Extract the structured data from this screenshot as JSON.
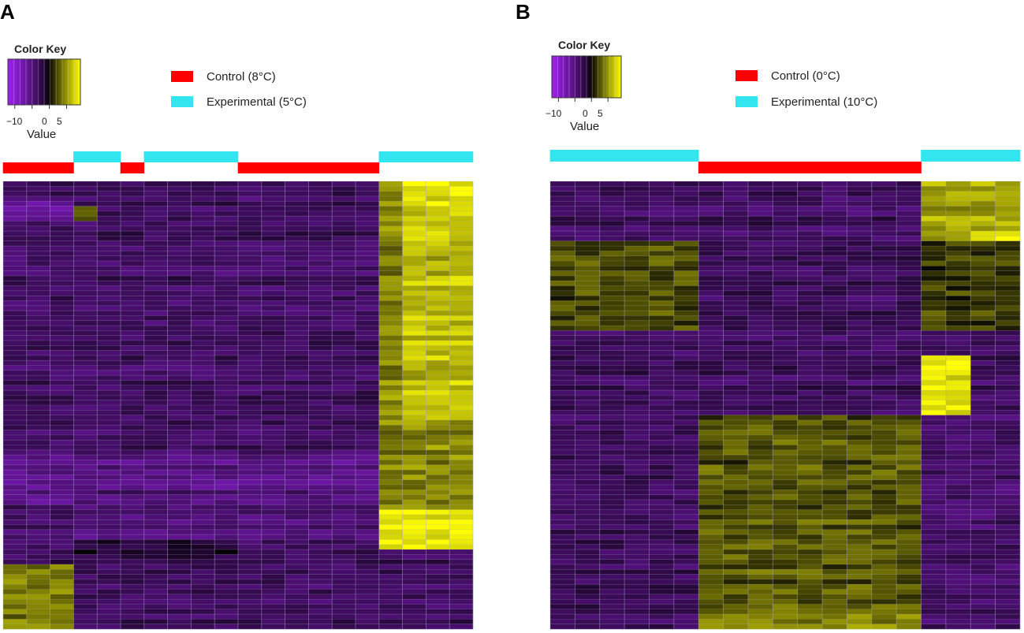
{
  "colors": {
    "control": "#ff0000",
    "experimental": "#33e5ee",
    "low": "#a020f0",
    "mid": "#000000",
    "high": "#ffff00"
  },
  "chart_data": [
    {
      "type": "heatmap",
      "panel_label": "A",
      "color_key": {
        "title": "Color Key",
        "tick_labels": [
          "−10",
          "0",
          "5"
        ],
        "value_label": "Value",
        "range": [
          -12,
          9
        ]
      },
      "legend": [
        {
          "label": "Control (8°C)",
          "group": "control"
        },
        {
          "label": "Experimental (5°C)",
          "group": "experimental"
        }
      ],
      "column_groups": [
        "control",
        "control",
        "control",
        "experimental",
        "experimental",
        "control",
        "experimental",
        "experimental",
        "experimental",
        "experimental",
        "control",
        "control",
        "control",
        "control",
        "control",
        "control",
        "experimental",
        "experimental",
        "experimental",
        "experimental"
      ],
      "n_rows": 90,
      "blocks": [
        {
          "rows": [
            0,
            90
          ],
          "cols": [
            0,
            16
          ],
          "value": -3.5
        },
        {
          "rows": [
            4,
            8
          ],
          "cols": [
            0,
            3
          ],
          "value": -7
        },
        {
          "rows": [
            5,
            8
          ],
          "cols": [
            3,
            4
          ],
          "value": 2.5
        },
        {
          "rows": [
            55,
            65
          ],
          "cols": [
            0,
            16
          ],
          "value": -5.5
        },
        {
          "rows": [
            62,
            72
          ],
          "cols": [
            3,
            16
          ],
          "value": -4.5
        },
        {
          "rows": [
            72,
            76
          ],
          "cols": [
            3,
            10
          ],
          "value": -1.5
        },
        {
          "rows": [
            77,
            90
          ],
          "cols": [
            0,
            3
          ],
          "value": 4
        },
        {
          "rows": [
            0,
            90
          ],
          "cols": [
            16,
            17
          ],
          "value": 4.5
        },
        {
          "rows": [
            0,
            48
          ],
          "cols": [
            17,
            20
          ],
          "value": 6.5
        },
        {
          "rows": [
            0,
            6
          ],
          "cols": [
            17,
            20
          ],
          "value": 8
        },
        {
          "rows": [
            48,
            66
          ],
          "cols": [
            16,
            20
          ],
          "value": 4.5
        },
        {
          "rows": [
            66,
            74
          ],
          "cols": [
            16,
            20
          ],
          "value": 8.5
        },
        {
          "rows": [
            74,
            90
          ],
          "cols": [
            16,
            20
          ],
          "value": -3.5
        }
      ]
    },
    {
      "type": "heatmap",
      "panel_label": "B",
      "color_key": {
        "title": "Color Key",
        "tick_labels": [
          "−10",
          "0",
          "5"
        ],
        "value_label": "Value",
        "range": [
          -12,
          9
        ]
      },
      "legend": [
        {
          "label": "Control (0°C)",
          "group": "control"
        },
        {
          "label": "Experimental (10°C)",
          "group": "experimental"
        }
      ],
      "column_groups": [
        "experimental",
        "experimental",
        "experimental",
        "experimental",
        "experimental",
        "experimental",
        "control",
        "control",
        "control",
        "control",
        "control",
        "control",
        "control",
        "control",
        "control",
        "experimental",
        "experimental",
        "experimental",
        "experimental"
      ],
      "n_rows": 90,
      "blocks": [
        {
          "rows": [
            0,
            90
          ],
          "cols": [
            0,
            19
          ],
          "value": -3.5
        },
        {
          "rows": [
            12,
            30
          ],
          "cols": [
            0,
            6
          ],
          "value": 2
        },
        {
          "rows": [
            0,
            12
          ],
          "cols": [
            15,
            19
          ],
          "value": 5.5
        },
        {
          "rows": [
            10,
            13
          ],
          "cols": [
            17,
            19
          ],
          "value": 8
        },
        {
          "rows": [
            12,
            30
          ],
          "cols": [
            15,
            19
          ],
          "value": 1.5
        },
        {
          "rows": [
            35,
            47
          ],
          "cols": [
            15,
            17
          ],
          "value": 8
        },
        {
          "rows": [
            47,
            90
          ],
          "cols": [
            6,
            15
          ],
          "value": 2.5
        },
        {
          "rows": [
            47,
            90
          ],
          "cols": [
            15,
            19
          ],
          "value": -4
        },
        {
          "rows": [
            87,
            90
          ],
          "cols": [
            6,
            15
          ],
          "value": 4.5
        }
      ]
    }
  ]
}
